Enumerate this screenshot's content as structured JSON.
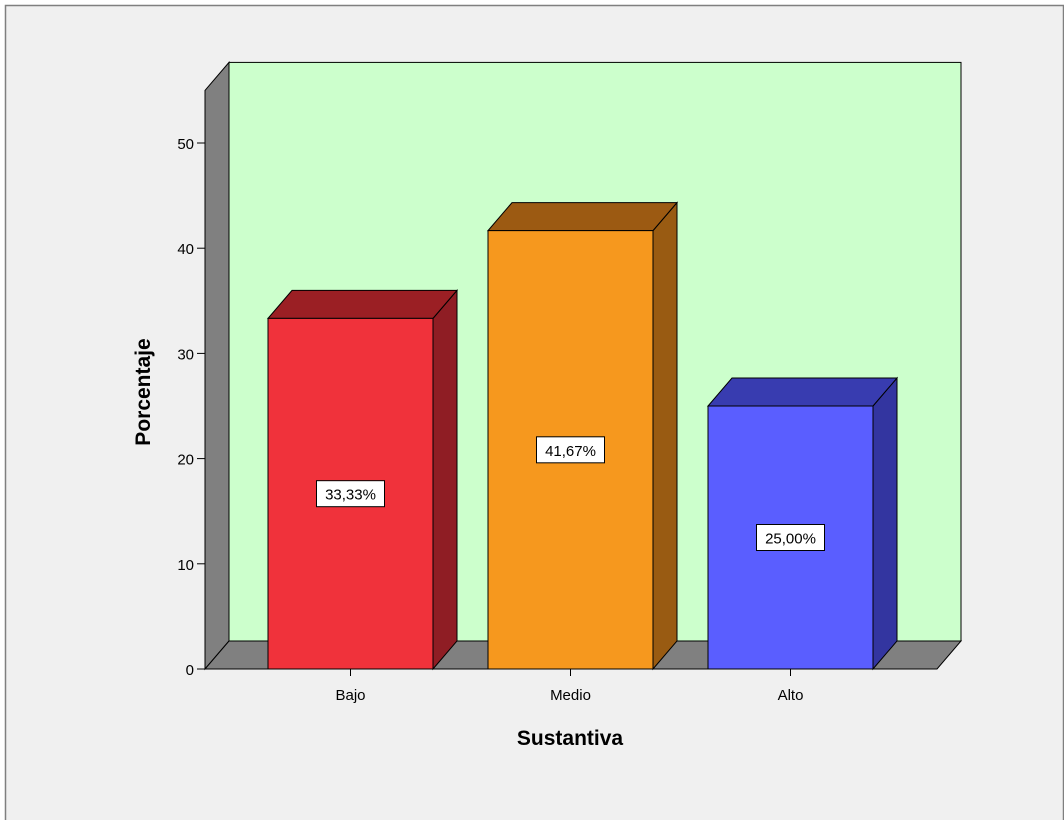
{
  "chart_data": {
    "type": "bar",
    "three_d": true,
    "categories": [
      "Bajo",
      "Medio",
      "Alto"
    ],
    "values": [
      33.33,
      41.67,
      25.0
    ],
    "data_labels": [
      "33,33%",
      "41,67%",
      "25,00%"
    ],
    "bar_colors": [
      "#f0323b",
      "#f6981e",
      "#5a5eff"
    ],
    "bar_side_colors": [
      "#8f1d24",
      "#995b12",
      "#3335a0"
    ],
    "bar_top_colors": [
      "#9b1f24",
      "#9c5a12",
      "#383cb0"
    ],
    "xlabel": "Sustantiva",
    "ylabel": "Porcentaje",
    "ylim": [
      0,
      55
    ],
    "yticks": [
      0,
      10,
      20,
      30,
      40,
      50
    ],
    "grid": false,
    "legend": "none",
    "colors": {
      "outer_background": "#f0f0f0",
      "plot_back_wall": "#ccffcc",
      "plot_side_wall": "#808080",
      "plot_floor": "#808080"
    }
  }
}
